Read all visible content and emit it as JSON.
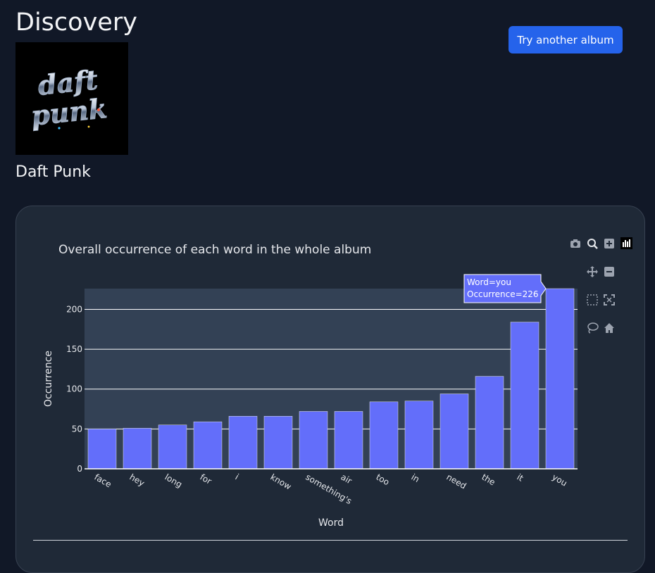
{
  "page": {
    "title": "Discovery",
    "artist": "Daft Punk",
    "try_button_label": "Try another album"
  },
  "cover": {
    "logo_text_line1": "daft",
    "logo_text_line2": "punk"
  },
  "modebar": {
    "icons": [
      "camera-icon",
      "zoom-icon",
      "zoom-in-icon",
      "plotly-logo-icon",
      "pan-icon",
      "zoom-out-icon",
      "box-select-icon",
      "autoscale-icon",
      "lasso-icon",
      "home-icon"
    ]
  },
  "tooltip": {
    "line1": "Word=you",
    "line2": "Occurrence=226"
  },
  "colors": {
    "bar": "#636efa",
    "plot_bg": "#334155",
    "card_bg": "#1f2937",
    "button": "#2563eb"
  },
  "chart_data": {
    "type": "bar",
    "title": "Overall occurrence of each word in the whole album",
    "xlabel": "Word",
    "ylabel": "Occurrence",
    "categories": [
      "face",
      "hey",
      "long",
      "for",
      "i",
      "know",
      "something's",
      "air",
      "too",
      "in",
      "need",
      "the",
      "it",
      "you"
    ],
    "values": [
      50,
      51,
      55,
      59,
      66,
      66,
      72,
      72,
      84,
      85,
      94,
      116,
      184,
      226
    ],
    "ylim": [
      0,
      226
    ],
    "yticks": [
      0,
      50,
      100,
      150,
      200
    ],
    "grid": true
  }
}
